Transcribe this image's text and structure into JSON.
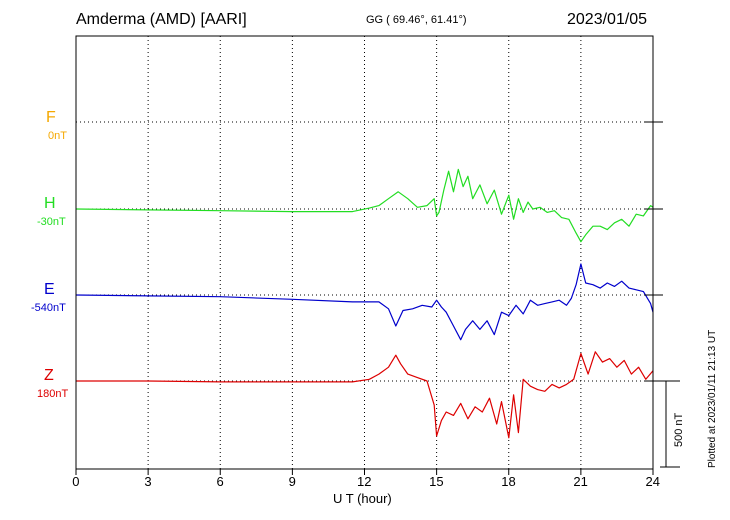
{
  "header": {
    "station": "Amderma (AMD)  [AARI]",
    "coords": "GG ( 69.46°,  61.41°)",
    "date": "2023/01/05"
  },
  "footer": {
    "plotted": "Plotted at 2023/01/11 21:13 UT"
  },
  "scale_bar": {
    "label": "500 nT",
    "value_nT": 500
  },
  "colors": {
    "F": "#f5a800",
    "H": "#22dd22",
    "E": "#0000cc",
    "Z": "#dd0000"
  },
  "chart_data": {
    "type": "line",
    "title": "Amderma (AMD)  [AARI]",
    "xlabel": "U T (hour)",
    "ylabel": "",
    "xlim": [
      0,
      24
    ],
    "x_ticks": [
      "0",
      "3",
      "6",
      "9",
      "12",
      "15",
      "18",
      "21",
      "24"
    ],
    "grid": true,
    "series": [
      {
        "name": "F",
        "baseline": "0nT",
        "color": "#f5a800",
        "x": [],
        "values": []
      },
      {
        "name": "H",
        "baseline": "-30nT",
        "color": "#22dd22",
        "x": [
          0,
          3,
          6,
          9,
          11.5,
          12.2,
          12.6,
          13.0,
          13.4,
          13.8,
          14.2,
          14.6,
          14.9,
          15.0,
          15.1,
          15.3,
          15.5,
          15.7,
          15.9,
          16.1,
          16.3,
          16.5,
          16.8,
          17.1,
          17.4,
          17.7,
          18.0,
          18.2,
          18.4,
          18.6,
          18.8,
          19.0,
          19.3,
          19.6,
          19.9,
          20.2,
          20.5,
          20.8,
          21.0,
          21.2,
          21.5,
          21.8,
          22.1,
          22.4,
          22.7,
          23.0,
          23.3,
          23.6,
          23.9,
          24.0
        ],
        "values": [
          0,
          -5,
          -10,
          -15,
          -15,
          5,
          20,
          60,
          100,
          60,
          10,
          20,
          60,
          -40,
          -20,
          110,
          220,
          100,
          230,
          130,
          190,
          60,
          140,
          30,
          110,
          -30,
          80,
          -60,
          60,
          -20,
          40,
          0,
          10,
          -20,
          -10,
          -50,
          -60,
          -140,
          -190,
          -150,
          -100,
          -100,
          -120,
          -80,
          -60,
          -100,
          -30,
          -40,
          20,
          10
        ]
      },
      {
        "name": "E",
        "baseline": "-540nT",
        "color": "#0000cc",
        "x": [
          0,
          3,
          6,
          9,
          11.5,
          12.2,
          12.6,
          13.0,
          13.3,
          13.6,
          14.0,
          14.4,
          14.8,
          15.0,
          15.2,
          15.4,
          15.7,
          16.0,
          16.2,
          16.5,
          16.8,
          17.1,
          17.4,
          17.7,
          18.0,
          18.3,
          18.6,
          18.9,
          19.2,
          19.5,
          19.8,
          20.1,
          20.4,
          20.6,
          20.8,
          21.0,
          21.2,
          21.5,
          21.8,
          22.1,
          22.4,
          22.7,
          23.0,
          23.3,
          23.6,
          23.9,
          24.0
        ],
        "values": [
          0,
          -5,
          -10,
          -25,
          -40,
          -40,
          -40,
          -80,
          -180,
          -90,
          -80,
          -60,
          -70,
          -30,
          -70,
          -100,
          -180,
          -260,
          -200,
          -150,
          -200,
          -150,
          -230,
          -100,
          -120,
          -60,
          -110,
          -30,
          -60,
          -50,
          -40,
          -30,
          -60,
          -20,
          60,
          180,
          70,
          60,
          40,
          70,
          50,
          80,
          40,
          30,
          20,
          -50,
          -100
        ]
      },
      {
        "name": "Z",
        "baseline": "180nT",
        "color": "#dd0000",
        "x": [
          0,
          3,
          6,
          9,
          11.5,
          12.2,
          12.6,
          13.0,
          13.3,
          13.5,
          13.8,
          14.2,
          14.6,
          14.9,
          15.0,
          15.2,
          15.4,
          15.7,
          16.0,
          16.3,
          16.6,
          16.9,
          17.2,
          17.5,
          17.7,
          18.0,
          18.2,
          18.4,
          18.6,
          18.9,
          19.2,
          19.5,
          19.8,
          20.1,
          20.4,
          20.7,
          21.0,
          21.3,
          21.6,
          21.9,
          22.2,
          22.5,
          22.8,
          23.1,
          23.4,
          23.7,
          24.0
        ],
        "values": [
          0,
          0,
          -5,
          -5,
          -5,
          10,
          40,
          80,
          150,
          100,
          40,
          20,
          0,
          -140,
          -320,
          -230,
          -180,
          -200,
          -130,
          -220,
          -150,
          -180,
          -100,
          -250,
          -120,
          -330,
          -80,
          -300,
          10,
          -30,
          -50,
          -60,
          -20,
          -40,
          -20,
          10,
          160,
          40,
          170,
          110,
          130,
          80,
          120,
          40,
          80,
          10,
          60
        ]
      }
    ]
  }
}
